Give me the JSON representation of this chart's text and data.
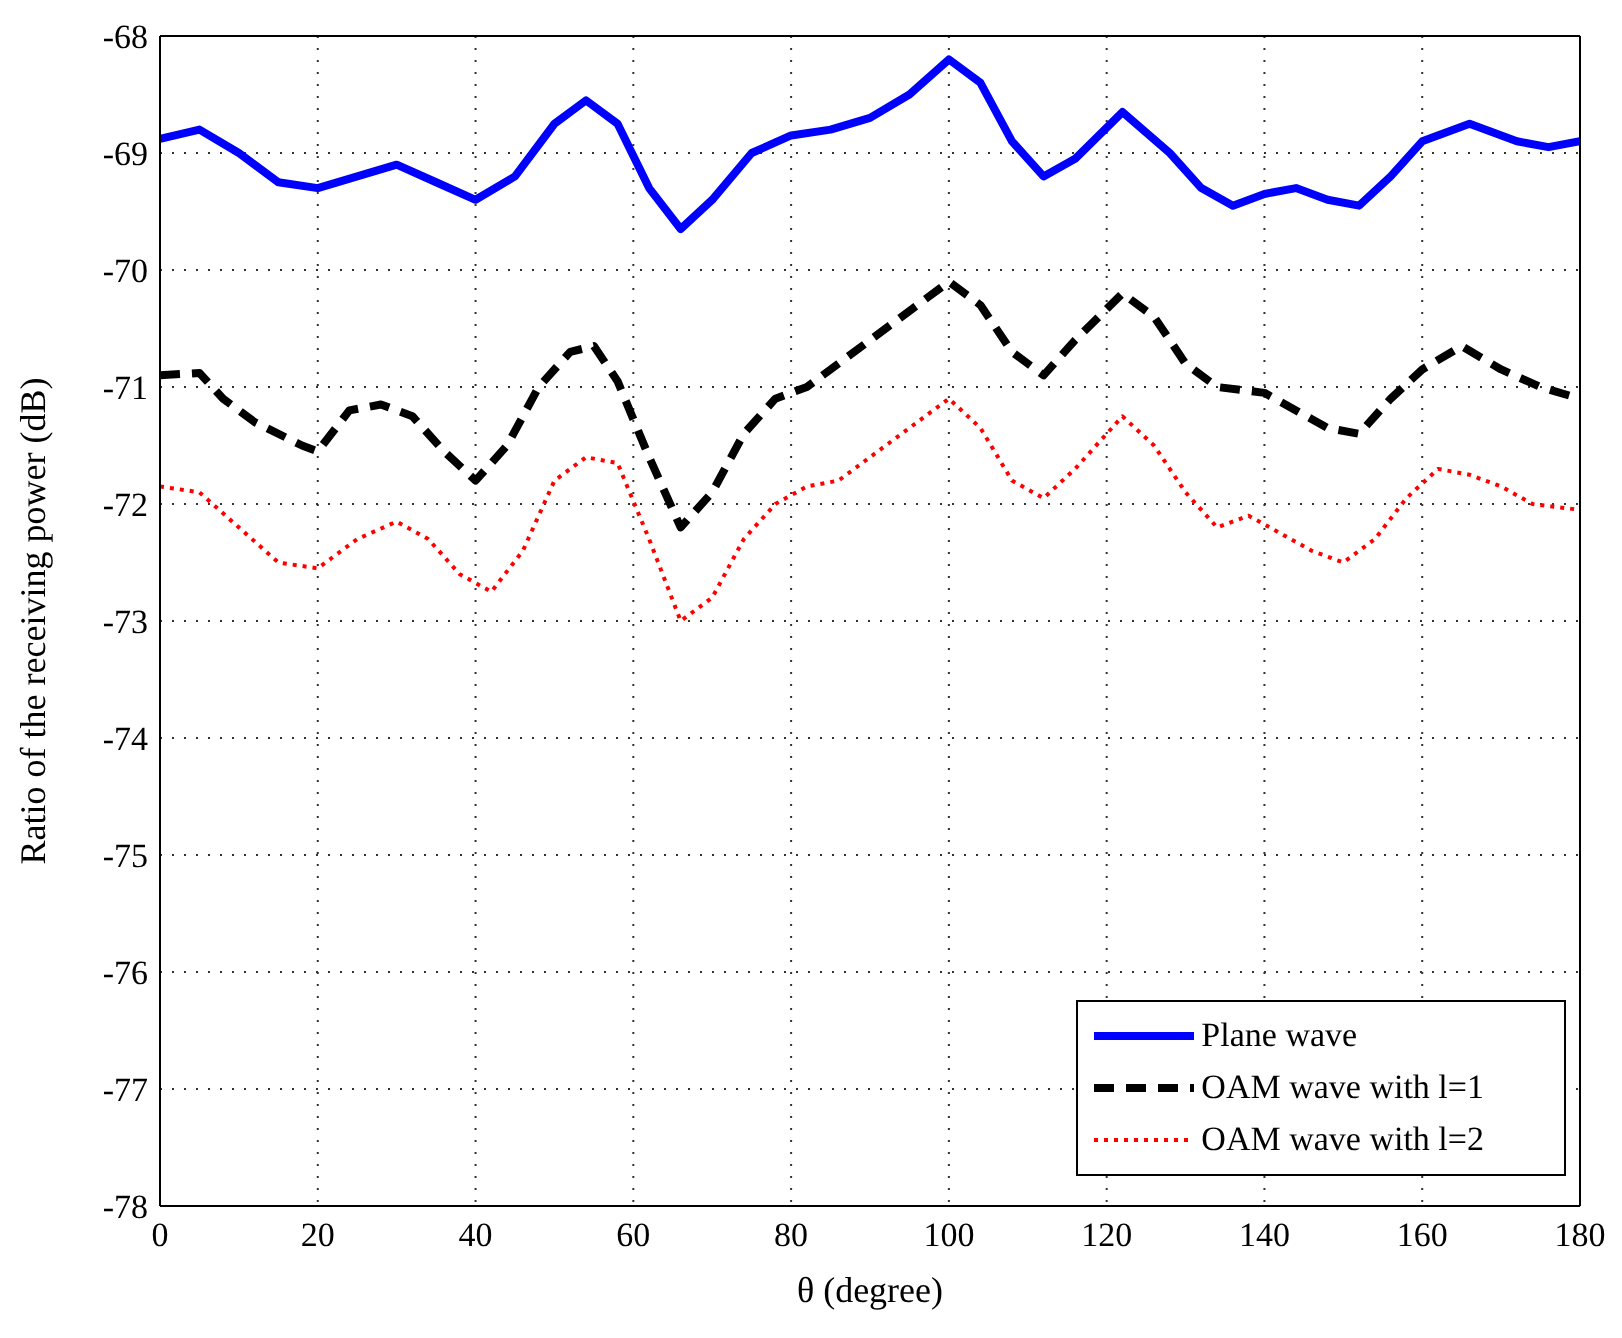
{
  "chart_data": {
    "type": "line",
    "xlabel": "θ (degree)",
    "ylabel": "Ratio of the receiving power (dB)",
    "xlim": [
      0,
      180
    ],
    "xticks": [
      0,
      20,
      40,
      60,
      80,
      100,
      120,
      140,
      160,
      180
    ],
    "ylim": [
      -78,
      -68
    ],
    "yticks": [
      -78,
      -77,
      -76,
      -75,
      -74,
      -73,
      -72,
      -71,
      -70,
      -69,
      -68
    ],
    "grid": true,
    "legend": "bottom right",
    "marker": "none",
    "series": [
      {
        "name": "Plane wave",
        "color": "#0000ff",
        "line_style": "solid",
        "x": [
          0,
          5,
          10,
          15,
          20,
          25,
          30,
          35,
          40,
          45,
          50,
          54,
          58,
          62,
          66,
          70,
          75,
          80,
          85,
          90,
          95,
          100,
          104,
          108,
          112,
          116,
          122,
          128,
          132,
          136,
          140,
          144,
          148,
          152,
          156,
          160,
          166,
          172,
          176,
          180
        ],
        "values": [
          -68.88,
          -68.8,
          -69.0,
          -69.25,
          -69.3,
          -69.2,
          -69.1,
          -69.25,
          -69.4,
          -69.2,
          -68.75,
          -68.55,
          -68.75,
          -69.3,
          -69.65,
          -69.4,
          -69.0,
          -68.85,
          -68.8,
          -68.7,
          -68.5,
          -68.2,
          -68.4,
          -68.9,
          -69.2,
          -69.05,
          -68.65,
          -69.0,
          -69.3,
          -69.45,
          -69.35,
          -69.3,
          -69.4,
          -69.45,
          -69.2,
          -68.9,
          -68.75,
          -68.9,
          -68.95,
          -68.9
        ]
      },
      {
        "name": "OAM wave with l=1",
        "color": "#000000",
        "line_style": "dashed",
        "x": [
          0,
          5,
          8,
          12,
          18,
          20,
          24,
          28,
          32,
          36,
          40,
          44,
          48,
          52,
          55,
          58,
          62,
          66,
          70,
          74,
          78,
          82,
          86,
          90,
          95,
          100,
          104,
          108,
          112,
          116,
          122,
          126,
          130,
          134,
          140,
          144,
          148,
          152,
          156,
          160,
          165,
          170,
          175,
          180
        ],
        "values": [
          -70.9,
          -70.88,
          -71.1,
          -71.3,
          -71.5,
          -71.55,
          -71.2,
          -71.15,
          -71.25,
          -71.55,
          -71.8,
          -71.5,
          -71.0,
          -70.7,
          -70.65,
          -70.95,
          -71.6,
          -72.2,
          -71.9,
          -71.4,
          -71.1,
          -71.0,
          -70.8,
          -70.6,
          -70.35,
          -70.1,
          -70.3,
          -70.7,
          -70.9,
          -70.6,
          -70.2,
          -70.4,
          -70.8,
          -71.0,
          -71.05,
          -71.2,
          -71.35,
          -71.4,
          -71.1,
          -70.85,
          -70.65,
          -70.85,
          -71.0,
          -71.1
        ]
      },
      {
        "name": "OAM wave with l=2",
        "color": "#ff0000",
        "line_style": "dotted",
        "x": [
          0,
          5,
          10,
          15,
          20,
          25,
          30,
          34,
          38,
          42,
          46,
          50,
          54,
          58,
          62,
          66,
          70,
          74,
          78,
          82,
          86,
          90,
          95,
          100,
          104,
          108,
          112,
          116,
          122,
          126,
          130,
          134,
          138,
          142,
          146,
          150,
          154,
          158,
          162,
          166,
          170,
          174,
          180
        ],
        "values": [
          -71.85,
          -71.9,
          -72.2,
          -72.5,
          -72.55,
          -72.3,
          -72.15,
          -72.3,
          -72.6,
          -72.75,
          -72.4,
          -71.8,
          -71.6,
          -71.65,
          -72.3,
          -73.0,
          -72.8,
          -72.3,
          -72.0,
          -71.85,
          -71.8,
          -71.6,
          -71.35,
          -71.1,
          -71.35,
          -71.8,
          -71.95,
          -71.7,
          -71.25,
          -71.5,
          -71.9,
          -72.2,
          -72.1,
          -72.25,
          -72.4,
          -72.5,
          -72.3,
          -71.95,
          -71.7,
          -71.75,
          -71.85,
          -72.0,
          -72.05
        ]
      }
    ]
  }
}
